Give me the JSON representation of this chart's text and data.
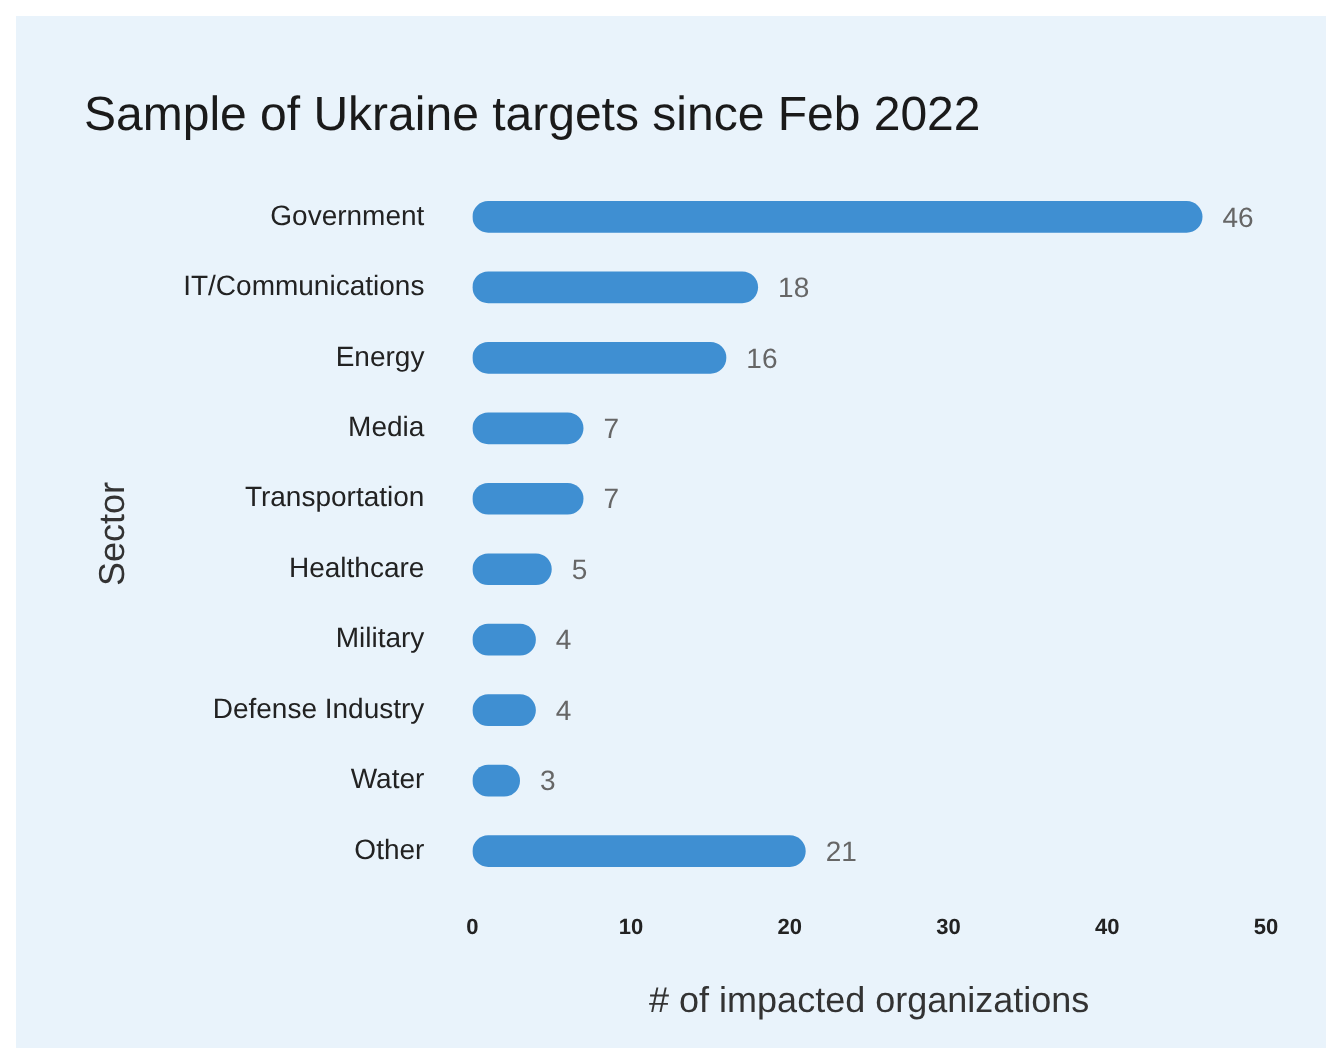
{
  "chart_data": {
    "type": "bar",
    "orientation": "horizontal",
    "title": "Sample of Ukraine targets since Feb 2022",
    "xlabel": "# of impacted organizations",
    "ylabel": "Sector",
    "categories": [
      "Government",
      "IT/Communications",
      "Energy",
      "Media",
      "Transportation",
      "Healthcare",
      "Military",
      "Defense Industry",
      "Water",
      "Other"
    ],
    "values": [
      46,
      18,
      16,
      7,
      7,
      5,
      4,
      4,
      3,
      21
    ],
    "color": "#3f8fd2",
    "xlim": [
      0,
      50
    ],
    "xticks": [
      0,
      10,
      20,
      30,
      40,
      50
    ],
    "grid": false,
    "data_labels": true,
    "legend": false
  }
}
